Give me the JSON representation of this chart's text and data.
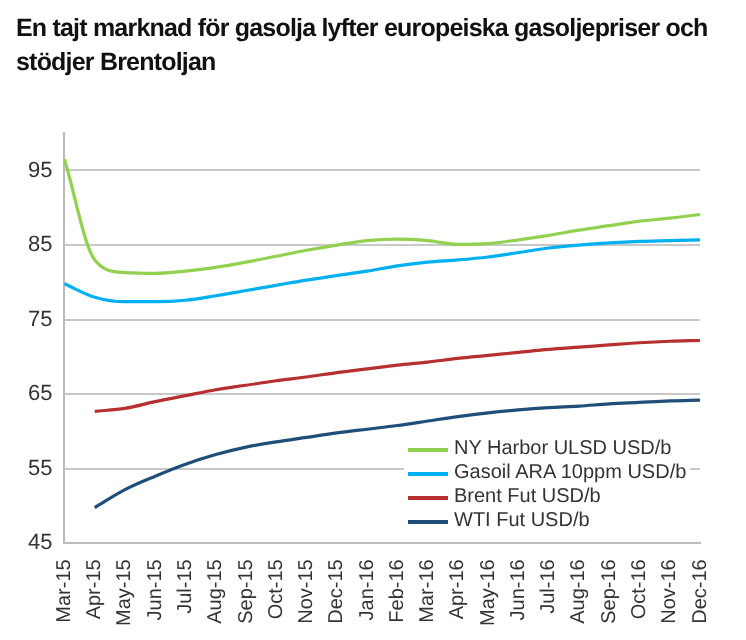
{
  "chart_data": {
    "type": "line",
    "title": "En tajt marknad för gasolja lyfter europeiska gasoljepriser och stödjer Brentoljan",
    "categories": [
      "Mar-15",
      "Apr-15",
      "May-15",
      "Jun-15",
      "Jul-15",
      "Aug-15",
      "Sep-15",
      "Oct-15",
      "Nov-15",
      "Dec-15",
      "Jan-16",
      "Feb-16",
      "Mar-16",
      "Apr-16",
      "May-16",
      "Jun-16",
      "Jul-16",
      "Aug-16",
      "Sep-16",
      "Oct-16",
      "Nov-16",
      "Dec-16"
    ],
    "series": [
      {
        "name": "NY Harbor ULSD USD/b",
        "color": "#92d050",
        "values": [
          96.5,
          83,
          81.3,
          81.2,
          81.5,
          82,
          82.7,
          83.5,
          84.3,
          85,
          85.6,
          85.8,
          85.6,
          85.1,
          85.2,
          85.7,
          86.3,
          87,
          87.6,
          88.2,
          88.6,
          89.1
        ]
      },
      {
        "name": "Gasoil ARA 10ppm USD/b",
        "color": "#00b0f0",
        "values": [
          79.8,
          78,
          77.4,
          77.4,
          77.6,
          78.2,
          78.9,
          79.6,
          80.3,
          80.9,
          81.5,
          82.2,
          82.7,
          83,
          83.4,
          84,
          84.6,
          85,
          85.3,
          85.5,
          85.6,
          85.7
        ]
      },
      {
        "name": "Brent Fut USD/b",
        "color": "#b5302e",
        "values": [
          null,
          62.7,
          63.1,
          64,
          64.8,
          65.6,
          66.2,
          66.8,
          67.3,
          67.9,
          68.4,
          68.9,
          69.3,
          69.8,
          70.2,
          70.6,
          71,
          71.3,
          71.6,
          71.9,
          72.1,
          72.2
        ]
      },
      {
        "name": "WTI Fut USD/b",
        "color": "#1f4e79",
        "values": [
          null,
          49.8,
          52.2,
          54,
          55.6,
          56.9,
          57.9,
          58.6,
          59.2,
          59.8,
          60.3,
          60.8,
          61.4,
          62,
          62.5,
          62.9,
          63.2,
          63.4,
          63.7,
          63.9,
          64.1,
          64.2
        ]
      }
    ],
    "ylim": [
      45,
      100
    ],
    "yticks": [
      45,
      55,
      65,
      75,
      85,
      95
    ],
    "grid": "y",
    "legend": "bottom right",
    "marker": "none",
    "line_style": "solid"
  }
}
